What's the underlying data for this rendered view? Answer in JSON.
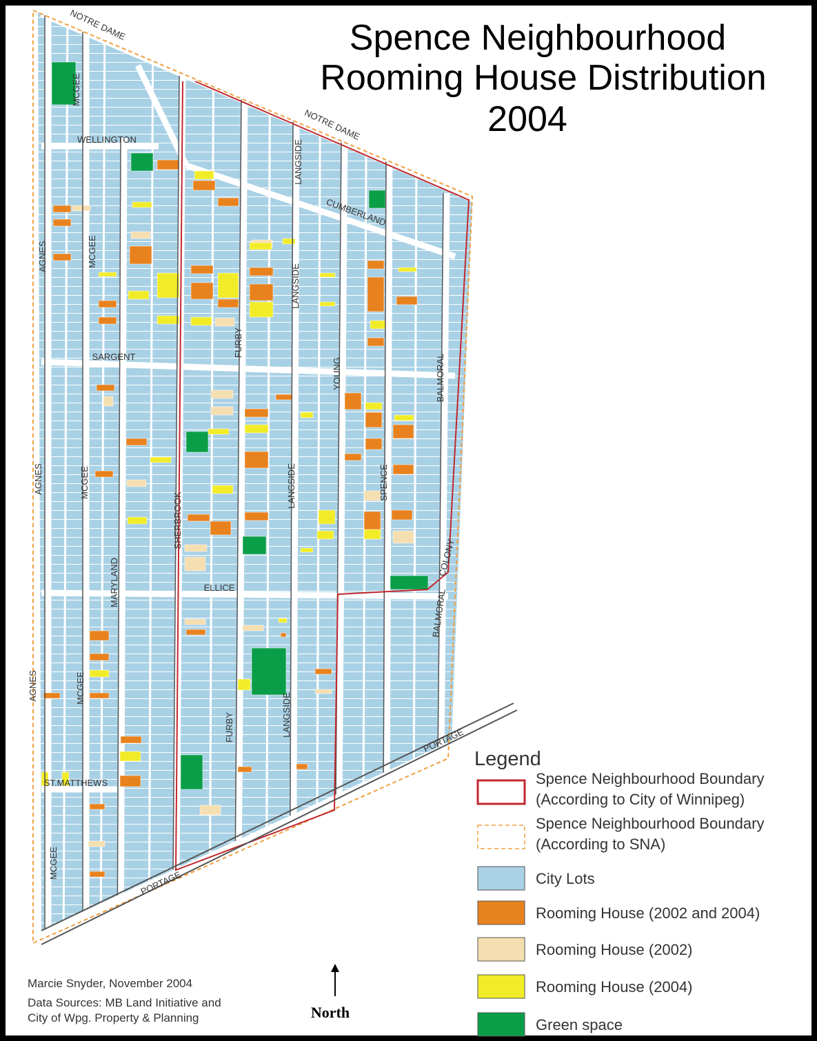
{
  "title": [
    "Spence Neighbourhood",
    "Rooming House Distribution",
    "2004"
  ],
  "legend": {
    "title": "Legend",
    "items": [
      {
        "lines": [
          "Spence Neighbourhood Boundary",
          "(According to City of Winnipeg)"
        ],
        "color": "#c0282d"
      },
      {
        "lines": [
          "Spence Neighbourhood Boundary",
          "(According to SNA)"
        ],
        "color": "#f0a040"
      },
      {
        "lines": [
          "City Lots"
        ],
        "color": "#a9d1e5"
      },
      {
        "lines": [
          "Rooming House (2002 and 2004)"
        ],
        "color": "#e8821e"
      },
      {
        "lines": [
          "Rooming House (2002)"
        ],
        "color": "#f5deb0"
      },
      {
        "lines": [
          "Rooming House (2004)"
        ],
        "color": "#f2ec28"
      },
      {
        "lines": [
          "Green space"
        ],
        "color": "#0a9e48"
      }
    ]
  },
  "credits": [
    "Marcie Snyder, November 2004",
    "Data Sources: MB Land Initiative and",
    "City of Wpg. Property & Planning"
  ],
  "north": "North",
  "streets": [
    "NOTRE DAME",
    "MCGEE",
    "WELLINGTON",
    "NOTRE DAME",
    "LANGSIDE",
    "CUMBERLAND",
    "AGNES",
    "MCGEE",
    "LANGSIDE",
    "SARGENT",
    "FURBY",
    "YOUNG",
    "BALMORAL",
    "AGNES",
    "MCGEE",
    "LANGSIDE",
    "SPENCE",
    "MARYLAND",
    "SHERBROOK",
    "COLONY",
    "ELLICE",
    "BALMORAL",
    "AGNES",
    "MCGEE",
    "FURBY",
    "LANGSIDE",
    "PORTAGE",
    "ST.MATTHEWS",
    "MCGEE",
    "PORTAGE"
  ]
}
